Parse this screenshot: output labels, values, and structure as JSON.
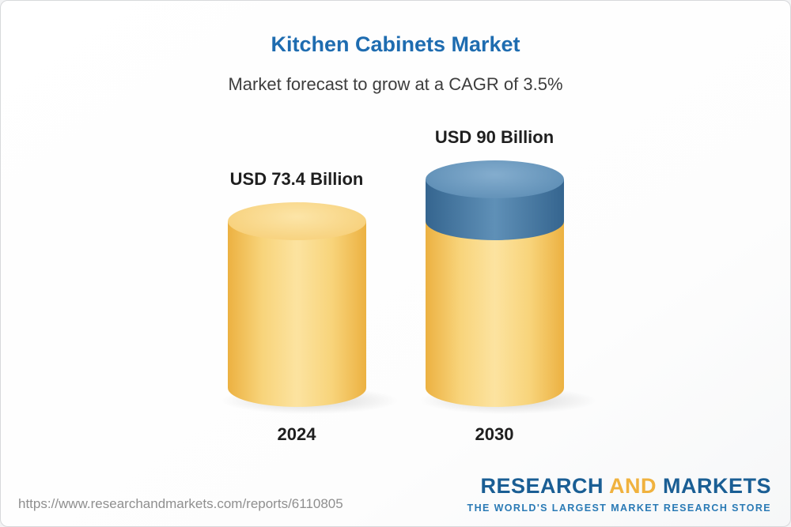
{
  "header": {
    "title": "Kitchen Cabinets Market",
    "subtitle": "Market forecast to grow at a CAGR of 3.5%"
  },
  "chart_data": {
    "type": "bar",
    "title": "Kitchen Cabinets Market",
    "subtitle": "Market forecast to grow at a CAGR of 3.5%",
    "cagr": "3.5%",
    "unit": "USD Billion",
    "categories": [
      "2024",
      "2030"
    ],
    "values": [
      73.4,
      90
    ],
    "ylim": [
      0,
      90
    ],
    "grid": false,
    "legend": false,
    "bars": [
      {
        "year": "2024",
        "value": 73.4,
        "label": "USD 73.4 Billion",
        "color": "#f6c55f"
      },
      {
        "year": "2030",
        "value": 90,
        "label": "USD 90 Billion",
        "color": "#f6c55f",
        "top_segment_value": 16.6,
        "top_segment_color": "#44769f"
      }
    ]
  },
  "footer": {
    "url": "https://www.researchandmarkets.com/reports/6110805",
    "logo": {
      "research": "RESEARCH",
      "and": "AND",
      "markets": "MARKETS",
      "tagline": "THE WORLD'S LARGEST MARKET RESEARCH STORE"
    }
  },
  "colors": {
    "title_blue": "#1e6cb0",
    "bar_yellow": "#f6c55f",
    "bar_blue": "#44769f",
    "logo_blue": "#1a5e94",
    "logo_yellow": "#f0b23e",
    "url_gray": "#8f8f8f"
  }
}
